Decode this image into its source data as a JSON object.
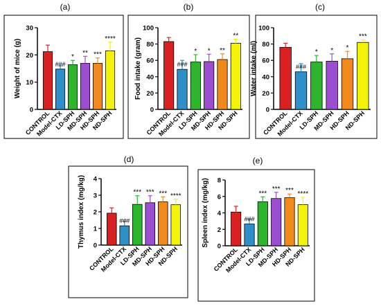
{
  "chart_data": [
    {
      "type": "bar",
      "panel_label": "(a)",
      "title": "",
      "ylabel": "Weight of mice (g)",
      "ylim": [
        0,
        30
      ],
      "yticks": [
        0,
        10,
        20,
        30
      ],
      "categories": [
        "CONTROL",
        "Model-CTX",
        "LD-SPH",
        "MD-SPH",
        "HD-SPH",
        "ND-SPH"
      ],
      "values": [
        21.2,
        14.8,
        16.4,
        16.9,
        16.9,
        21.5
      ],
      "errors": [
        2.4,
        1.2,
        1.6,
        2.6,
        2.0,
        3.2
      ],
      "annotations": [
        "",
        "###",
        "*",
        "**",
        "***",
        "****"
      ],
      "colors": [
        "#d92121",
        "#2f8fc9",
        "#2db52d",
        "#9b4fd0",
        "#f08a1c",
        "#f2f20a"
      ]
    },
    {
      "type": "bar",
      "panel_label": "(b)",
      "title": "",
      "ylabel": "Food intake (gram)",
      "ylim": [
        0,
        100
      ],
      "yticks": [
        0,
        20,
        40,
        60,
        80,
        100
      ],
      "categories": [
        "CONTROL",
        "Model-CTX",
        "LD-SPH",
        "MD-SPH",
        "HD-SPH",
        "ND-SPH"
      ],
      "values": [
        83,
        49,
        58,
        58.5,
        61,
        81
      ],
      "errors": [
        5,
        11,
        9,
        9,
        7,
        5
      ],
      "annotations": [
        "",
        "###",
        "*",
        "*",
        "**",
        "**"
      ],
      "colors": [
        "#d92121",
        "#2f8fc9",
        "#2db52d",
        "#9b4fd0",
        "#f08a1c",
        "#f2f20a"
      ]
    },
    {
      "type": "bar",
      "panel_label": "(c)",
      "title": "",
      "ylabel": "Water intake (ml)",
      "ylim": [
        0,
        100
      ],
      "yticks": [
        0,
        20,
        40,
        60,
        80,
        100
      ],
      "categories": [
        "CONTROL",
        "Model-CTX",
        "LD-SPH",
        "MD-SPH",
        "HD-SPH",
        "ND-SPH"
      ],
      "values": [
        76,
        46,
        58,
        59,
        62,
        82
      ],
      "errors": [
        5,
        10,
        8,
        9,
        9,
        3
      ],
      "annotations": [
        "",
        "###",
        "*",
        "*",
        "*",
        "***"
      ],
      "colors": [
        "#d92121",
        "#2f8fc9",
        "#2db52d",
        "#9b4fd0",
        "#f08a1c",
        "#f2f20a"
      ]
    },
    {
      "type": "bar",
      "panel_label": "(d)",
      "title": "",
      "ylabel": "Thymus index (mg/kg)",
      "ylim": [
        0,
        4
      ],
      "yticks": [
        0,
        1,
        2,
        3,
        4
      ],
      "categories": [
        "CONTROL",
        "Model-CTX",
        "LD-SPH",
        "MD-SPH",
        "HD-SPH",
        "ND-SPH"
      ],
      "values": [
        1.92,
        1.16,
        2.45,
        2.55,
        2.6,
        2.43
      ],
      "errors": [
        0.32,
        0.28,
        0.52,
        0.42,
        0.3,
        0.33
      ],
      "annotations": [
        "",
        "###",
        "***",
        "***",
        "***",
        "****"
      ],
      "colors": [
        "#d92121",
        "#2f8fc9",
        "#2db52d",
        "#9b4fd0",
        "#f08a1c",
        "#f2f20a"
      ]
    },
    {
      "type": "bar",
      "panel_label": "(e)",
      "title": "",
      "ylabel": "Spleen index (mg/kg)",
      "ylim": [
        0,
        8
      ],
      "yticks": [
        0,
        2,
        4,
        6,
        8
      ],
      "categories": [
        "CONTROL",
        "Model-CTX",
        "LD-SPH",
        "MD-SPH",
        "HD-SPH",
        "ND-SPH"
      ],
      "values": [
        4.1,
        2.65,
        5.35,
        5.75,
        5.85,
        5.0
      ],
      "errors": [
        0.7,
        0.55,
        0.6,
        0.75,
        0.45,
        0.9
      ],
      "annotations": [
        "",
        "###",
        "***",
        "***",
        "***",
        "****"
      ],
      "colors": [
        "#d92121",
        "#2f8fc9",
        "#2db52d",
        "#9b4fd0",
        "#f08a1c",
        "#f2f20a"
      ]
    }
  ]
}
